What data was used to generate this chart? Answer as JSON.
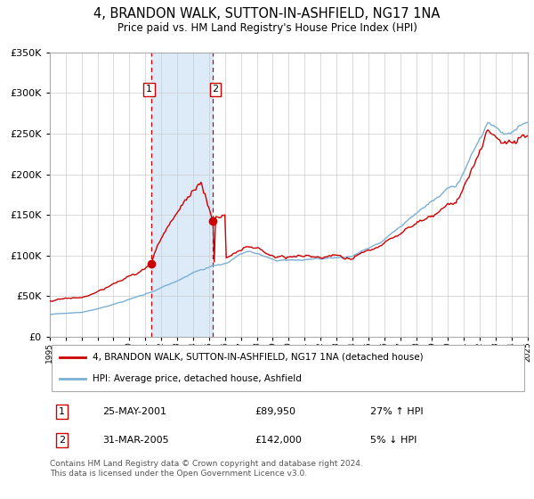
{
  "title": "4, BRANDON WALK, SUTTON-IN-ASHFIELD, NG17 1NA",
  "subtitle": "Price paid vs. HM Land Registry's House Price Index (HPI)",
  "legend_entry1": "4, BRANDON WALK, SUTTON-IN-ASHFIELD, NG17 1NA (detached house)",
  "legend_entry2": "HPI: Average price, detached house, Ashfield",
  "transaction1_date": "25-MAY-2001",
  "transaction1_price": 89950,
  "transaction1_hpi": "27% ↑ HPI",
  "transaction2_date": "31-MAR-2005",
  "transaction2_price": 142000,
  "transaction2_hpi": "5% ↓ HPI",
  "footnote": "Contains HM Land Registry data © Crown copyright and database right 2024.\nThis data is licensed under the Open Government Licence v3.0.",
  "hpi_color": "#7bafd4",
  "price_color": "#cc0000",
  "background_color": "#ffffff",
  "grid_color": "#cccccc",
  "shading_color": "#ddeaf7",
  "ylim_min": 0,
  "ylim_max": 350000,
  "transaction1_year": 2001.38,
  "transaction2_year": 2005.25
}
